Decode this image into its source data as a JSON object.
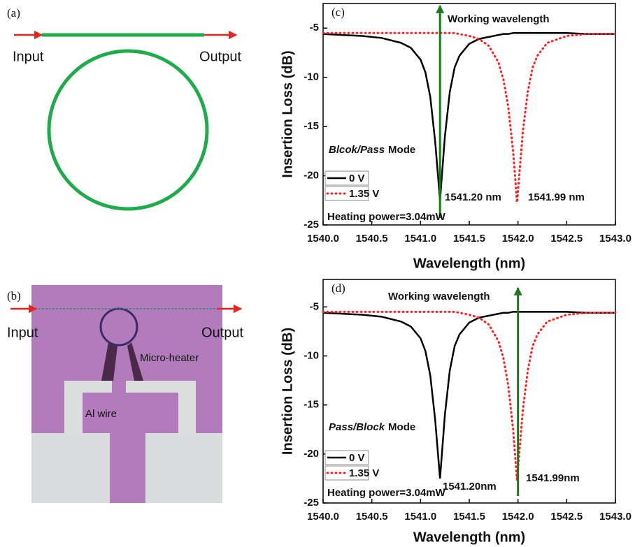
{
  "panels": {
    "a": {
      "label": "(a)",
      "input": "Input",
      "output": "Output"
    },
    "b": {
      "label": "(b)",
      "input": "Input",
      "output": "Output",
      "heater": "Micro-heater",
      "wire": "Al wire"
    }
  },
  "chart_data": [
    {
      "type": "line",
      "panel_label": "(c)",
      "x": [
        1540.0,
        1540.2,
        1540.4,
        1540.6,
        1540.8,
        1540.9,
        1541.0,
        1541.05,
        1541.1,
        1541.15,
        1541.2,
        1541.25,
        1541.3,
        1541.35,
        1541.4,
        1541.5,
        1541.6,
        1541.7,
        1541.8,
        1541.85,
        1541.9,
        1541.95,
        1541.99,
        1542.05,
        1542.1,
        1542.15,
        1542.2,
        1542.3,
        1542.5,
        1542.7,
        1543.0
      ],
      "series": [
        {
          "name": "0 V",
          "color": "#000000",
          "style": "solid",
          "values": [
            -5.6,
            -5.7,
            -5.8,
            -6.0,
            -6.5,
            -7.0,
            -8.2,
            -9.5,
            -12.0,
            -16.5,
            -22.5,
            -16.0,
            -11.5,
            -9.0,
            -7.8,
            -6.6,
            -6.1,
            -5.9,
            -5.7,
            -5.6,
            -5.6,
            -5.5,
            -5.5,
            -5.5,
            -5.5,
            -5.5,
            -5.5,
            -5.5,
            -5.5,
            -5.6,
            -5.6
          ]
        },
        {
          "name": "1.35 V",
          "color": "#ff2020",
          "style": "dotted",
          "values": [
            -5.5,
            -5.5,
            -5.5,
            -5.5,
            -5.5,
            -5.5,
            -5.5,
            -5.5,
            -5.5,
            -5.5,
            -5.5,
            -5.5,
            -5.5,
            -5.5,
            -5.6,
            -5.8,
            -6.1,
            -6.8,
            -8.5,
            -10.2,
            -13.0,
            -17.5,
            -22.7,
            -15.5,
            -11.5,
            -9.0,
            -7.8,
            -6.5,
            -5.8,
            -5.6,
            -5.6
          ]
        }
      ],
      "xlabel": "Wavelength (nm)",
      "ylabel": "Insertion Loss (dB)",
      "xlim": [
        1540,
        1543
      ],
      "ylim": [
        -25,
        -2.5
      ],
      "xticks": [
        {
          "value": 1540,
          "label": "1540.0"
        },
        {
          "value": 1540.5,
          "label": "1540.5"
        },
        {
          "value": 1541,
          "label": "1541.0"
        },
        {
          "value": 1541.5,
          "label": "1541.5"
        },
        {
          "value": 1542,
          "label": "1542.0"
        },
        {
          "value": 1542.5,
          "label": "1542.5"
        },
        {
          "value": 1543,
          "label": "1543.0"
        }
      ],
      "yticks": [
        -5,
        -10,
        -15,
        -20,
        -25
      ],
      "arrow_x": 1541.2,
      "arrow_label": "Working wavelength",
      "mode_label": "Blcok/Pass",
      "mode_suffix": "Mode",
      "peak_labels": [
        "1541.20 nm",
        "1541.99 nm"
      ],
      "note": "Heating power=3.04mW"
    },
    {
      "type": "line",
      "panel_label": "(d)",
      "x": [
        1540.0,
        1540.2,
        1540.4,
        1540.6,
        1540.8,
        1540.9,
        1541.0,
        1541.05,
        1541.1,
        1541.15,
        1541.2,
        1541.25,
        1541.3,
        1541.35,
        1541.4,
        1541.5,
        1541.6,
        1541.7,
        1541.8,
        1541.85,
        1541.9,
        1541.95,
        1541.99,
        1542.05,
        1542.1,
        1542.15,
        1542.2,
        1542.3,
        1542.5,
        1542.7,
        1543.0
      ],
      "series": [
        {
          "name": "0 V",
          "color": "#000000",
          "style": "solid",
          "values": [
            -5.6,
            -5.7,
            -5.8,
            -6.0,
            -6.5,
            -7.0,
            -8.2,
            -9.5,
            -12.0,
            -16.5,
            -22.5,
            -16.0,
            -11.5,
            -9.0,
            -7.8,
            -6.6,
            -6.1,
            -5.9,
            -5.7,
            -5.6,
            -5.6,
            -5.5,
            -5.5,
            -5.5,
            -5.5,
            -5.5,
            -5.5,
            -5.5,
            -5.5,
            -5.6,
            -5.6
          ]
        },
        {
          "name": "1.35 V",
          "color": "#ff2020",
          "style": "dotted",
          "values": [
            -5.5,
            -5.5,
            -5.5,
            -5.5,
            -5.5,
            -5.5,
            -5.5,
            -5.5,
            -5.5,
            -5.5,
            -5.5,
            -5.5,
            -5.5,
            -5.5,
            -5.6,
            -5.8,
            -6.1,
            -6.8,
            -8.5,
            -10.2,
            -13.0,
            -17.5,
            -22.7,
            -15.5,
            -11.5,
            -9.0,
            -7.8,
            -6.5,
            -5.8,
            -5.6,
            -5.6
          ]
        }
      ],
      "xlabel": "Wavelength (nm)",
      "ylabel": "Insertion Loss (dB)",
      "xlim": [
        1540,
        1543
      ],
      "ylim": [
        -25,
        -2.2
      ],
      "xticks": [
        {
          "value": 1540,
          "label": "1540.0"
        },
        {
          "value": 1540.5,
          "label": "1540.5"
        },
        {
          "value": 1541,
          "label": "1541.0"
        },
        {
          "value": 1541.5,
          "label": "1541.5"
        },
        {
          "value": 1542,
          "label": "1542.0"
        },
        {
          "value": 1542.5,
          "label": "1542.5"
        },
        {
          "value": 1543,
          "label": "1543.0"
        }
      ],
      "yticks": [
        -5,
        -10,
        -15,
        -20,
        -25
      ],
      "arrow_x": 1542.0,
      "arrow_label": "Working wavelength",
      "mode_label": "Pass/Block",
      "mode_suffix": "Mode",
      "peak_labels": [
        "1541.20nm",
        "1541.99nm"
      ],
      "note": "Heating power=3.04mW"
    }
  ]
}
